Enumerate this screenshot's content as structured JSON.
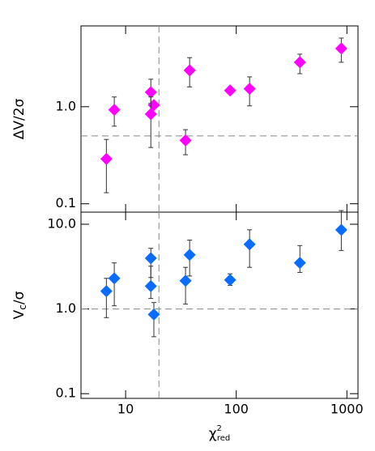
{
  "chart_data": [
    {
      "type": "scatter",
      "color": "#ff00ff",
      "log_x": true,
      "log_y": true,
      "ylabel": "ΔV/2σ",
      "xlim": [
        3.95,
        1260
      ],
      "ylim": [
        0.082,
        6.8
      ],
      "xticks": [
        10,
        100,
        1000
      ],
      "xtick_labels": false,
      "yticks": [
        {
          "value": 1,
          "label": "1.0"
        },
        0.1
      ],
      "hlines": [
        0.5
      ],
      "vlines": [
        20
      ],
      "x": [
        6.7,
        7.9,
        16.9,
        18,
        16.9,
        34.8,
        37.9,
        88,
        132,
        376,
        890
      ],
      "values": [
        0.29,
        0.93,
        1.41,
        1.04,
        0.84,
        0.45,
        2.37,
        1.47,
        1.53,
        2.87,
        3.98
      ],
      "y_low": [
        0.13,
        0.63,
        1.08,
        null,
        0.38,
        0.32,
        1.6,
        null,
        1.02,
        2.19,
        2.87
      ],
      "y_high": [
        0.46,
        1.26,
        1.92,
        null,
        1.26,
        0.58,
        3.2,
        null,
        2.03,
        3.48,
        5.1
      ]
    },
    {
      "type": "scatter",
      "color": "#0a6cff",
      "log_x": true,
      "log_y": true,
      "ylabel": "V",
      "ylabel_sub": "c",
      "ylabel_end": "/σ",
      "xlabel": "χ",
      "xlabel_sup": "2",
      "xlabel_sub": "red",
      "xlim": [
        3.95,
        1260
      ],
      "ylim": [
        0.088,
        13.9
      ],
      "xticks": [
        10,
        100,
        1000
      ],
      "xtick_labels": true,
      "yticks": [
        {
          "value": 10,
          "label": "10.0"
        },
        {
          "value": 1,
          "label": "1.0"
        },
        0.1
      ],
      "hlines": [
        1
      ],
      "vlines": [
        20
      ],
      "x": [
        6.7,
        7.9,
        16.9,
        16.9,
        18,
        34.8,
        37.9,
        88,
        132,
        376,
        890
      ],
      "values": [
        1.62,
        2.3,
        3.98,
        1.86,
        0.86,
        2.15,
        4.35,
        2.2,
        5.8,
        3.5,
        8.6
      ],
      "y_low": [
        0.79,
        1.09,
        2.35,
        1.33,
        0.47,
        1.14,
        2.45,
        1.9,
        3.1,
        2.7,
        4.9
      ],
      "y_high": [
        2.3,
        3.5,
        5.2,
        3.2,
        1.19,
        3.1,
        6.5,
        2.6,
        8.6,
        5.6,
        14.5
      ]
    }
  ]
}
